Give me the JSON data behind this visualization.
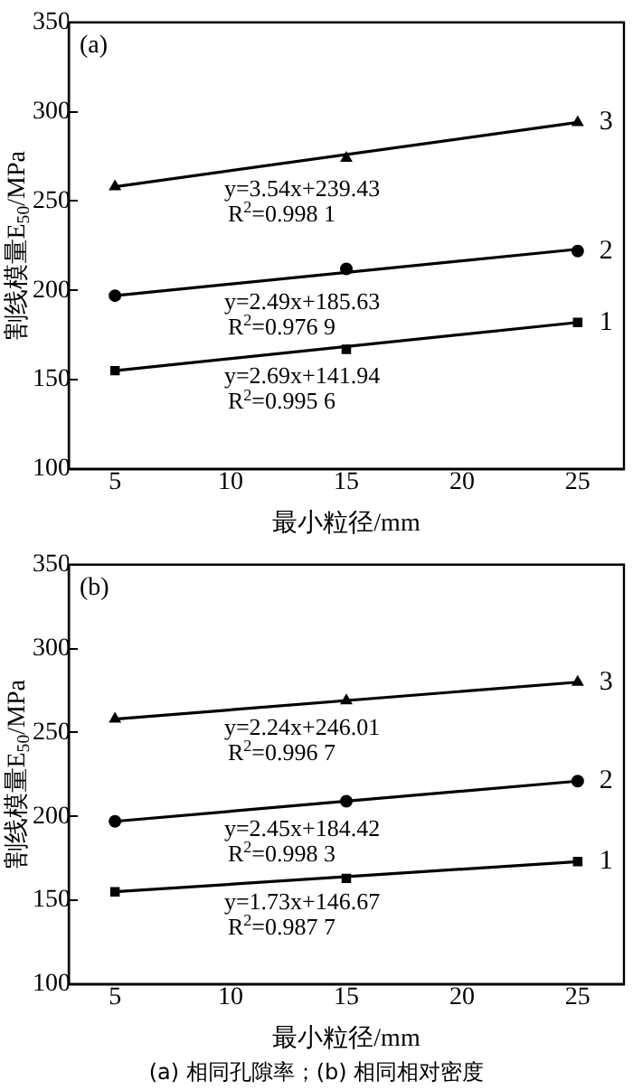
{
  "chart_data": [
    {
      "type": "scatter",
      "xlabel": "最小粒径/mm",
      "ylabel": "割线模量E$_{50}$/MPa",
      "xlim": [
        3,
        27
      ],
      "xticks": [
        5,
        10,
        15,
        20,
        25
      ],
      "ylim": [
        100,
        350
      ],
      "yticks": [
        100,
        150,
        200,
        250,
        300,
        350
      ],
      "grid": false,
      "legend": false,
      "annotations": [
        "(a)",
        "y=2.69x+141.94",
        "R$^{2}$=0.995 6",
        "y=2.49x+185.63",
        "R$^{2}$=0.976 9",
        "y=3.54x+239.43",
        "R$^{2}$=0.998 1"
      ],
      "series": [
        {
          "name": "1",
          "type": "scatter",
          "marker": "square",
          "color": "#000000",
          "x": [
            5,
            15,
            25
          ],
          "values": [
            155,
            167,
            182
          ]
        },
        {
          "name": "2",
          "type": "scatter",
          "marker": "circle",
          "color": "#000000",
          "x": [
            5,
            15,
            25
          ],
          "values": [
            197,
            212,
            222
          ]
        },
        {
          "name": "3",
          "type": "scatter",
          "marker": "triangle",
          "color": "#000000",
          "x": [
            5,
            15,
            25
          ],
          "values": [
            258,
            274,
            294
          ]
        },
        {
          "type": "line",
          "marker": "none",
          "color": "#000000",
          "x": [
            5,
            25
          ],
          "values": [
            155,
            182
          ]
        },
        {
          "type": "line",
          "marker": "none",
          "color": "#000000",
          "x": [
            5,
            25
          ],
          "values": [
            197,
            223
          ]
        },
        {
          "type": "line",
          "marker": "none",
          "color": "#000000",
          "x": [
            5,
            25
          ],
          "values": [
            258,
            294
          ]
        }
      ]
    },
    {
      "type": "scatter",
      "xlabel": "最小粒径/mm",
      "ylabel": "割线模量E$_{50}$/MPa",
      "xlim": [
        3,
        27
      ],
      "xticks": [
        5,
        10,
        15,
        20,
        25
      ],
      "ylim": [
        100,
        350
      ],
      "yticks": [
        100,
        150,
        200,
        250,
        300,
        350
      ],
      "grid": false,
      "legend": false,
      "annotations": [
        "(b)",
        "y=1.73x+146.67",
        "R$^{2}$=0.987 7",
        "y=2.45x+184.42",
        "R$^{2}$=0.998 3",
        "y=2.24x+246.01",
        "R$^{2}$=0.996 7",
        "(a) 相同孔隙率；(b) 相同相对密度"
      ],
      "series": [
        {
          "name": "1",
          "type": "scatter",
          "marker": "square",
          "color": "#000000",
          "x": [
            5,
            15,
            25
          ],
          "values": [
            155,
            163,
            173
          ]
        },
        {
          "name": "2",
          "type": "scatter",
          "marker": "circle",
          "color": "#000000",
          "x": [
            5,
            15,
            25
          ],
          "values": [
            197,
            209,
            221
          ]
        },
        {
          "name": "3",
          "type": "scatter",
          "marker": "triangle",
          "color": "#000000",
          "x": [
            5,
            15,
            25
          ],
          "values": [
            258,
            269,
            280
          ]
        },
        {
          "type": "line",
          "marker": "none",
          "color": "#000000",
          "x": [
            5,
            25
          ],
          "values": [
            155,
            173
          ]
        },
        {
          "type": "line",
          "marker": "none",
          "color": "#000000",
          "x": [
            5,
            25
          ],
          "values": [
            197,
            221
          ]
        },
        {
          "type": "line",
          "marker": "none",
          "color": "#000000",
          "x": [
            5,
            25
          ],
          "values": [
            258,
            280
          ]
        }
      ]
    }
  ]
}
